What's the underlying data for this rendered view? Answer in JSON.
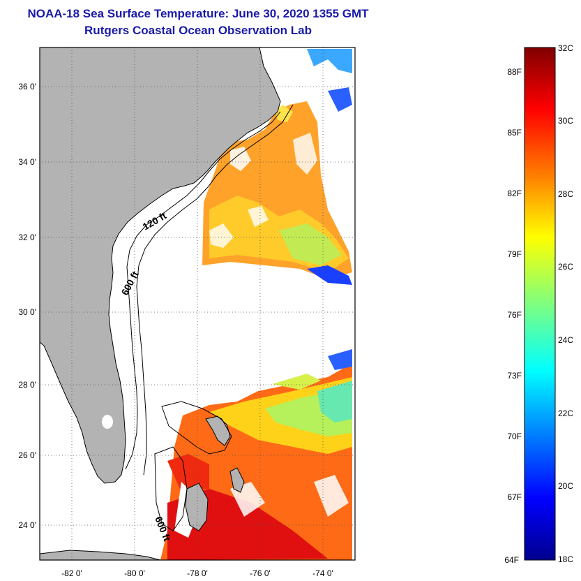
{
  "title": {
    "line1": "NOAA-18 Sea Surface Temperature:  June 30, 2020 1355 GMT",
    "line2": "Rutgers Coastal Ocean Observation Lab"
  },
  "map": {
    "lon_labels": [
      "-82 0'",
      "-80 0'",
      "-78 0'",
      "-76 0'",
      "-74 0'"
    ],
    "lat_labels": [
      "36 0'",
      "34 0'",
      "32 0'",
      "30 0'",
      "28 0'",
      "26 0'",
      "24 0'"
    ],
    "contours": [
      "120 ft",
      "600 ft",
      "600 ft"
    ],
    "colors": {
      "land": "#b3b3b3",
      "ocean_nodata": "#ffffff"
    }
  },
  "colorbar": {
    "celsius": [
      "32C",
      "30C",
      "28C",
      "26C",
      "24C",
      "22C",
      "20C",
      "18C"
    ],
    "fahrenheit": [
      "88F",
      "85F",
      "82F",
      "79F",
      "76F",
      "73F",
      "70F",
      "67F",
      "64F"
    ],
    "colors": [
      "#7f0000",
      "#ff0000",
      "#ff7f00",
      "#ffff00",
      "#7fff7f",
      "#00ffff",
      "#007fff",
      "#0000ff",
      "#00008f"
    ]
  }
}
